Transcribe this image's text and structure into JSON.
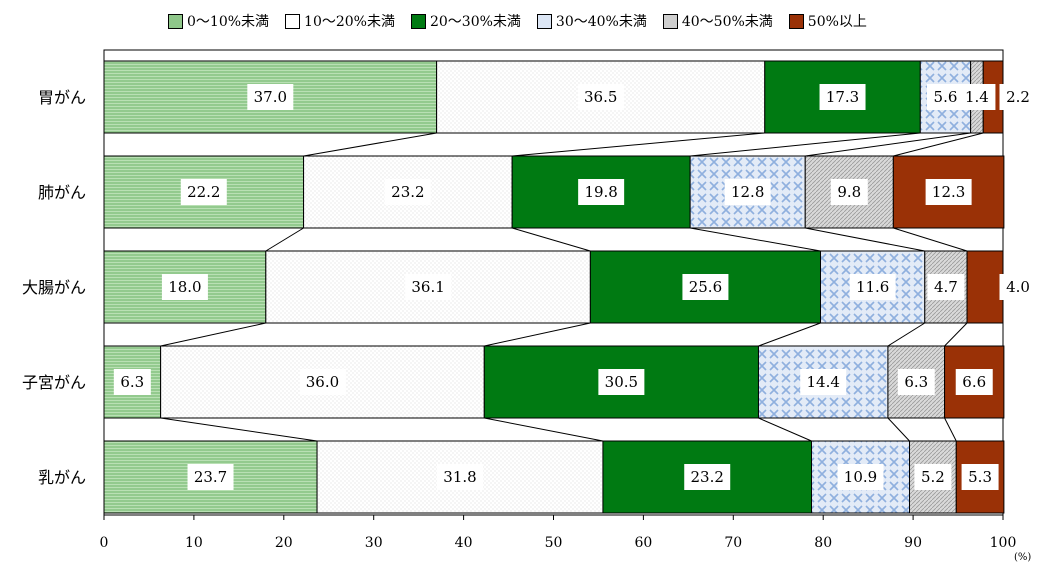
{
  "legend_swatch_colors": [
    "#8fc78a",
    "#ffffff",
    "#007a12",
    "#dce6f5",
    "#cfcfcf",
    "#9a3106"
  ],
  "chart_data": {
    "type": "bar",
    "orientation": "horizontal",
    "stacked": true,
    "categories": [
      "胃がん",
      "肺がん",
      "大腸がん",
      "子宮がん",
      "乳がん"
    ],
    "series": [
      {
        "name": "0～10%未満",
        "values": [
          37.0,
          22.2,
          18.0,
          6.3,
          23.7
        ],
        "labels": [
          "37.0",
          "22.2",
          "18.0",
          "6.3",
          "23.7"
        ],
        "color": "#8fc78a"
      },
      {
        "name": "10～20%未満",
        "values": [
          36.5,
          23.2,
          36.1,
          36.0,
          31.8
        ],
        "labels": [
          "36.5",
          "23.2",
          "36.1",
          "36.0",
          "31.8"
        ],
        "color": "#ffffff"
      },
      {
        "name": "20～30%未満",
        "values": [
          17.3,
          19.8,
          25.6,
          30.5,
          23.2
        ],
        "labels": [
          "17.3",
          "19.8",
          "25.6",
          "30.5",
          "23.2"
        ],
        "color": "#007a12"
      },
      {
        "name": "30～40%未満",
        "values": [
          5.6,
          12.8,
          11.6,
          14.4,
          10.9
        ],
        "labels": [
          "5.6",
          "12.8",
          "11.6",
          "14.4",
          "10.9"
        ],
        "color": "#dce6f5"
      },
      {
        "name": "40～50%未満",
        "values": [
          1.4,
          9.8,
          4.7,
          6.3,
          5.2
        ],
        "labels": [
          "1.4",
          "9.8",
          "4.7",
          "6.3",
          "5.2"
        ],
        "color": "#cfcfcf"
      },
      {
        "name": "50%以上",
        "values": [
          2.2,
          12.3,
          4.0,
          6.6,
          5.3
        ],
        "labels": [
          "2.2",
          "12.3",
          "4.0",
          "6.6",
          "5.3"
        ],
        "color": "#9a3106"
      }
    ],
    "x_ticks": [
      "0",
      "10",
      "20",
      "30",
      "40",
      "50",
      "60",
      "70",
      "80",
      "90",
      "100"
    ],
    "xlim": [
      0,
      100
    ],
    "unit": "(%)",
    "legend_position": "top",
    "series_lines": true
  }
}
